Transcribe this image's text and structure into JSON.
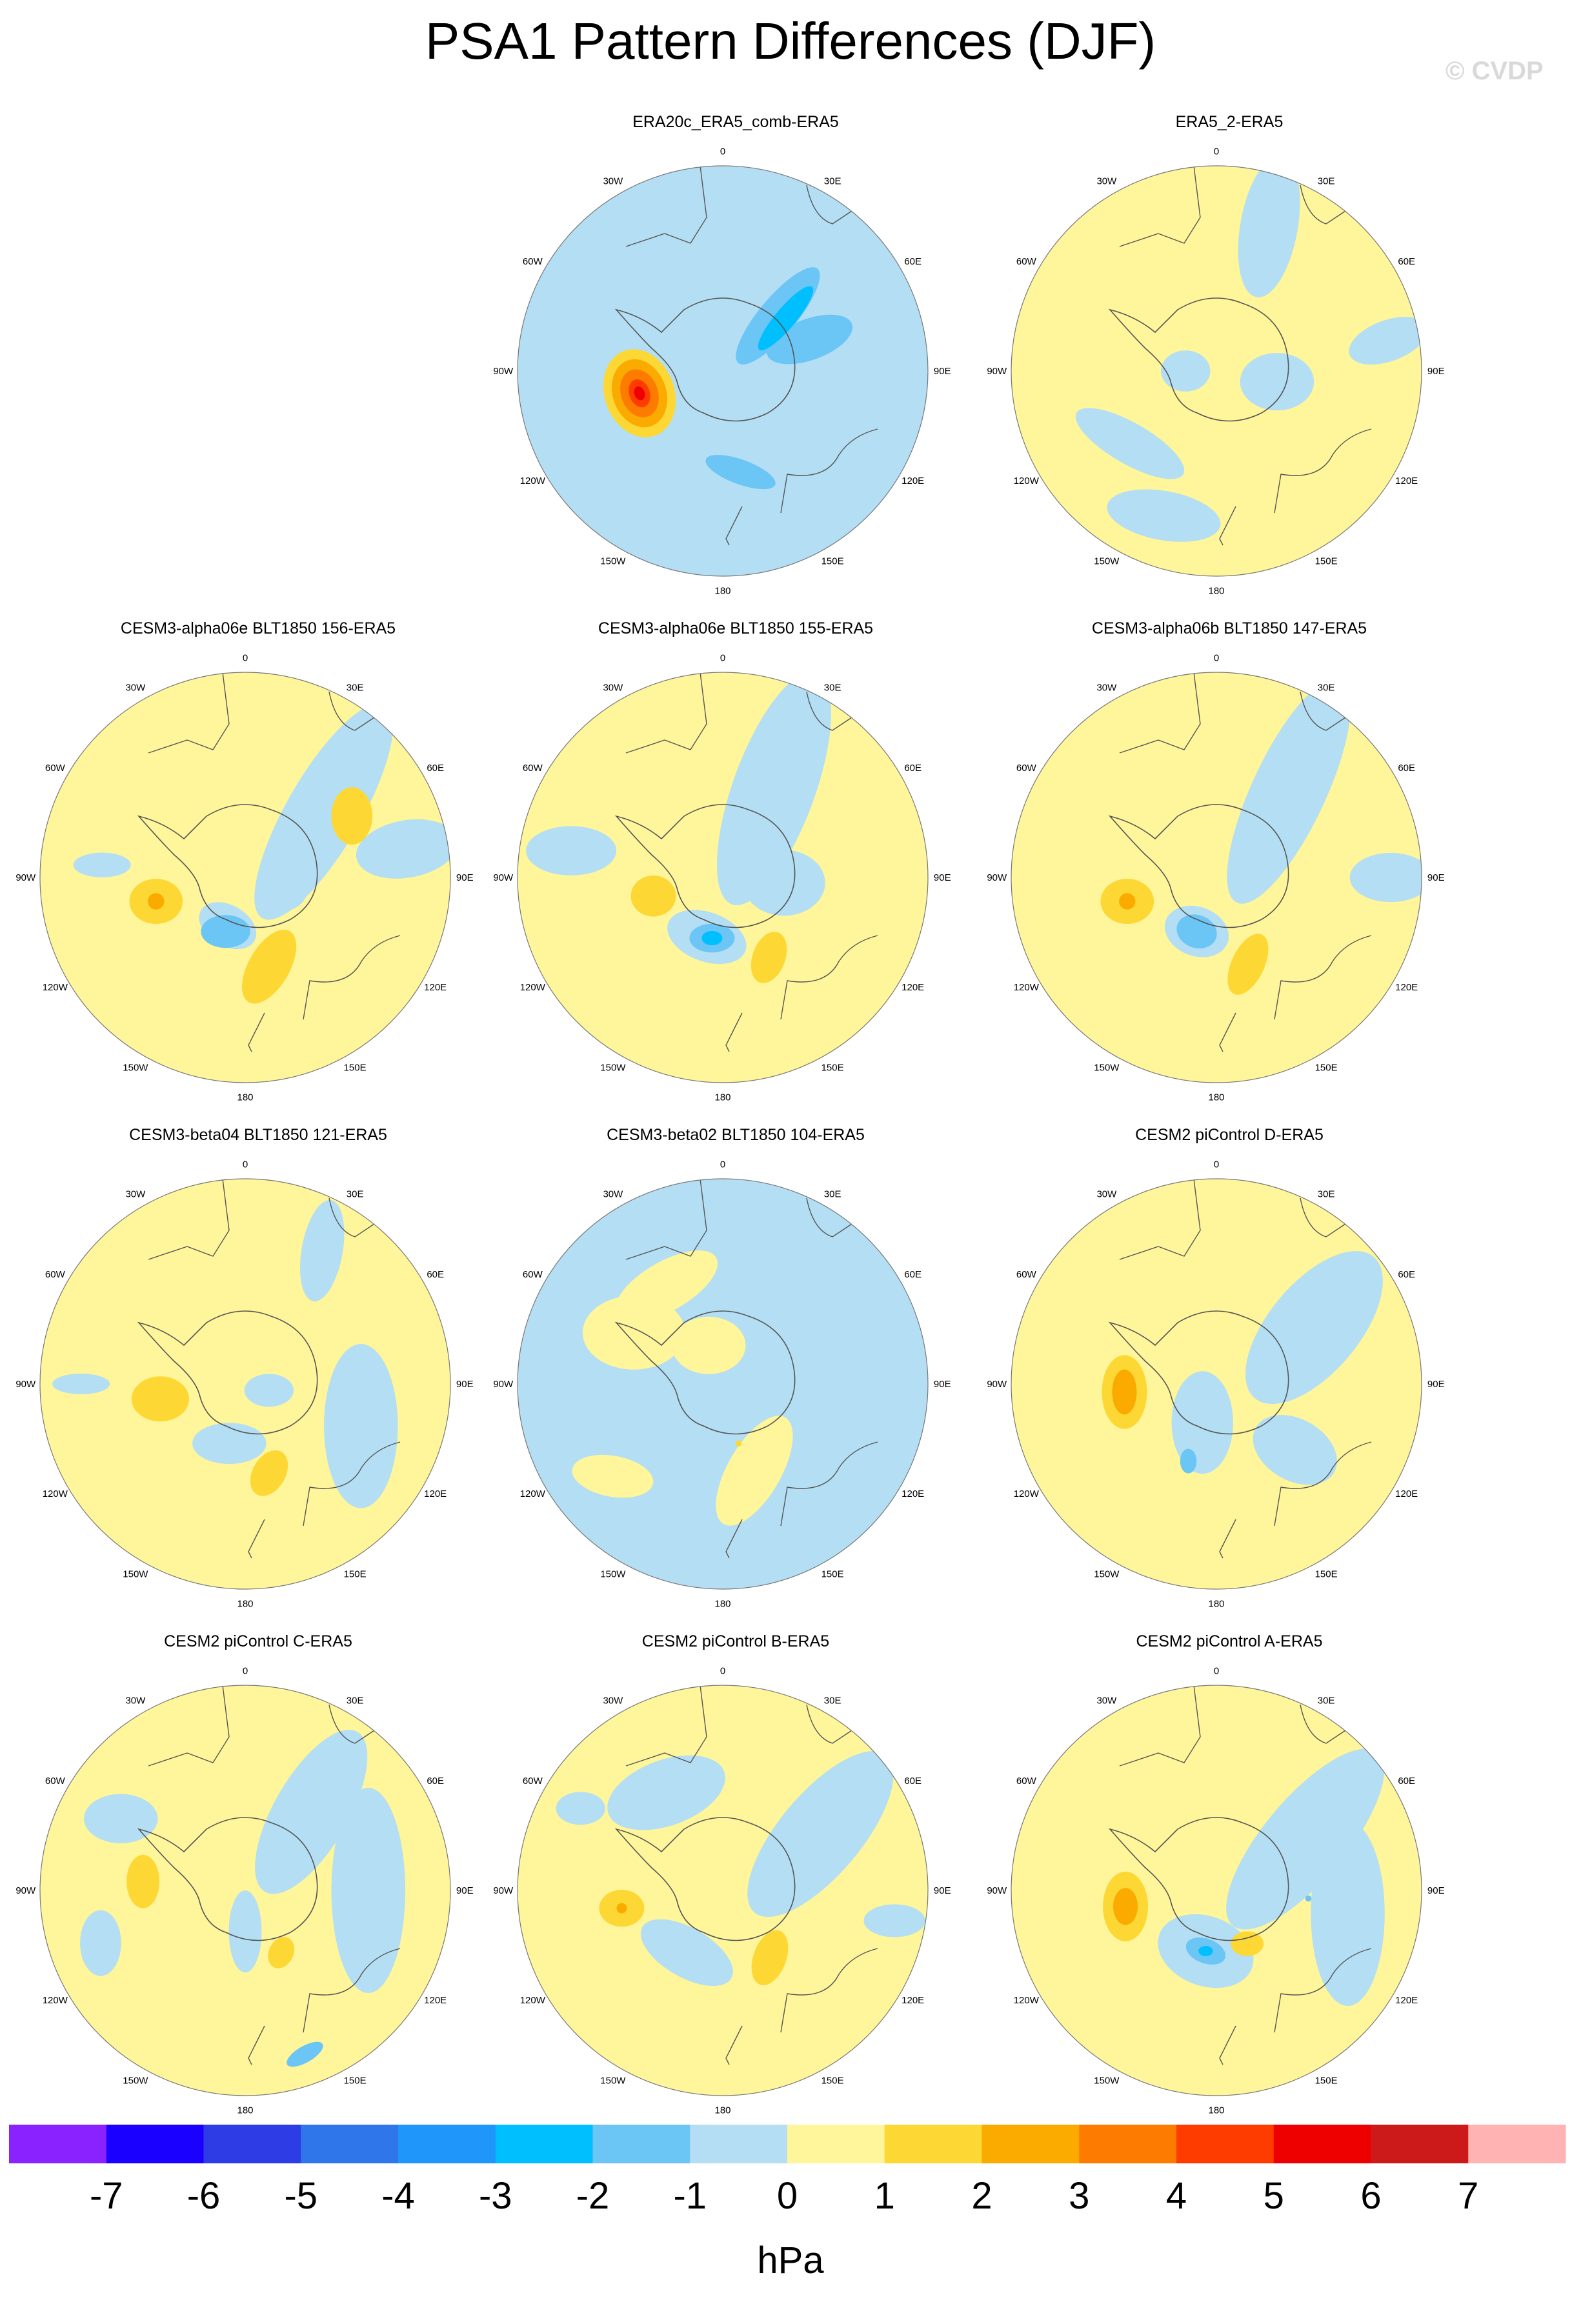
{
  "title": "PSA1 Pattern Differences (DJF)",
  "watermark": "© CVDP",
  "lon_labels": [
    "0",
    "30E",
    "60E",
    "90E",
    "120E",
    "150E",
    "180",
    "150W",
    "120W",
    "90W",
    "60W",
    "30W"
  ],
  "panels": [
    {
      "title": "ERA20c_ERA5_comb-ERA5",
      "bg": 0,
      "blobs": [
        {
          "lon": 290,
          "r": 0.55,
          "rx": 0.12,
          "ry": 0.07,
          "rot": 20,
          "v": -1
        },
        {
          "lon": 90,
          "r": 0.5,
          "rx": 0.55,
          "ry": 0.16,
          "rot": 90,
          "v": -1
        },
        {
          "lon": 40,
          "r": 0.35,
          "rx": 0.4,
          "ry": 0.14,
          "rot": 130,
          "v": -1
        },
        {
          "lon": 130,
          "r": 0.48,
          "rx": 0.35,
          "ry": 0.14,
          "rot": 40,
          "v": -1
        },
        {
          "lon": 45,
          "r": 0.38,
          "rx": 0.3,
          "ry": 0.09,
          "rot": 130,
          "v": -2
        },
        {
          "lon": 70,
          "r": 0.45,
          "rx": 0.22,
          "ry": 0.1,
          "rot": 160,
          "v": -2
        },
        {
          "lon": 170,
          "r": 0.5,
          "rx": 0.18,
          "ry": 0.06,
          "rot": 20,
          "v": -2
        },
        {
          "lon": 50,
          "r": 0.4,
          "rx": 0.2,
          "ry": 0.05,
          "rot": 130,
          "v": -3
        },
        {
          "lon": 255,
          "r": 0.42,
          "rx": 0.22,
          "ry": 0.17,
          "rot": 70,
          "v": 1
        },
        {
          "lon": 255,
          "r": 0.42,
          "rx": 0.17,
          "ry": 0.13,
          "rot": 70,
          "v": 2
        },
        {
          "lon": 255,
          "r": 0.42,
          "rx": 0.12,
          "ry": 0.09,
          "rot": 70,
          "v": 3
        },
        {
          "lon": 255,
          "r": 0.42,
          "rx": 0.07,
          "ry": 0.05,
          "rot": 70,
          "v": 4
        },
        {
          "lon": 255,
          "r": 0.42,
          "rx": 0.035,
          "ry": 0.025,
          "rot": 70,
          "v": 5
        }
      ]
    },
    {
      "title": "ERA5_2-ERA5",
      "bg": 1,
      "blobs": [
        {
          "lon": 20,
          "r": 0.75,
          "rx": 0.35,
          "ry": 0.14,
          "rot": 100,
          "v": -1
        },
        {
          "lon": 80,
          "r": 0.85,
          "rx": 0.2,
          "ry": 0.1,
          "rot": 160,
          "v": -1
        },
        {
          "lon": 230,
          "r": 0.55,
          "rx": 0.3,
          "ry": 0.1,
          "rot": 30,
          "v": -1
        },
        {
          "lon": 200,
          "r": 0.75,
          "rx": 0.28,
          "ry": 0.12,
          "rot": 10,
          "v": -1
        },
        {
          "lon": 100,
          "r": 0.3,
          "rx": 0.18,
          "ry": 0.14,
          "rot": 0,
          "v": -1
        },
        {
          "lon": 270,
          "r": 0.15,
          "rx": 0.12,
          "ry": 0.1,
          "rot": 0,
          "v": -1
        }
      ]
    },
    {
      "title": "CESM3-alpha06e BLT1850 156-ERA5",
      "bg": 1,
      "blobs": [
        {
          "lon": 50,
          "r": 0.5,
          "rx": 0.6,
          "ry": 0.18,
          "rot": 120,
          "v": -1
        },
        {
          "lon": 80,
          "r": 0.8,
          "rx": 0.25,
          "ry": 0.14,
          "rot": 170,
          "v": -1
        },
        {
          "lon": 200,
          "r": 0.25,
          "rx": 0.15,
          "ry": 0.1,
          "rot": 30,
          "v": -1
        },
        {
          "lon": 90,
          "r": 0.2,
          "rx": 0.12,
          "ry": 0.16,
          "rot": 0,
          "v": -1
        },
        {
          "lon": 275,
          "r": 0.7,
          "rx": 0.14,
          "ry": 0.06,
          "rot": 0,
          "v": -1
        },
        {
          "lon": 60,
          "r": 0.6,
          "rx": 0.1,
          "ry": 0.14,
          "rot": 0,
          "v": 1
        },
        {
          "lon": 255,
          "r": 0.45,
          "rx": 0.13,
          "ry": 0.11,
          "rot": 0,
          "v": 1
        },
        {
          "lon": 255,
          "r": 0.45,
          "rx": 0.04,
          "ry": 0.04,
          "rot": 0,
          "v": 2
        },
        {
          "lon": 165,
          "r": 0.45,
          "rx": 0.2,
          "ry": 0.1,
          "rot": 120,
          "v": 1
        },
        {
          "lon": 200,
          "r": 0.28,
          "rx": 0.12,
          "ry": 0.08,
          "rot": 0,
          "v": -2
        }
      ]
    },
    {
      "title": "CESM3-alpha06e BLT1850 155-ERA5",
      "bg": 1,
      "blobs": [
        {
          "lon": 30,
          "r": 0.5,
          "rx": 0.6,
          "ry": 0.2,
          "rot": 110,
          "v": -1
        },
        {
          "lon": 280,
          "r": 0.75,
          "rx": 0.22,
          "ry": 0.12,
          "rot": 0,
          "v": -1
        },
        {
          "lon": 95,
          "r": 0.3,
          "rx": 0.2,
          "ry": 0.16,
          "rot": 0,
          "v": -1
        },
        {
          "lon": 195,
          "r": 0.3,
          "rx": 0.2,
          "ry": 0.12,
          "rot": 20,
          "v": -1
        },
        {
          "lon": 190,
          "r": 0.3,
          "rx": 0.11,
          "ry": 0.07,
          "rot": 0,
          "v": -2
        },
        {
          "lon": 190,
          "r": 0.3,
          "rx": 0.05,
          "ry": 0.035,
          "rot": 0,
          "v": -3
        },
        {
          "lon": 255,
          "r": 0.35,
          "rx": 0.11,
          "ry": 0.1,
          "rot": 0,
          "v": 1
        },
        {
          "lon": 150,
          "r": 0.45,
          "rx": 0.13,
          "ry": 0.08,
          "rot": 110,
          "v": 1
        }
      ]
    },
    {
      "title": "CESM3-alpha06b BLT1850 147-ERA5",
      "bg": 1,
      "blobs": [
        {
          "lon": 40,
          "r": 0.55,
          "rx": 0.6,
          "ry": 0.18,
          "rot": 115,
          "v": -1
        },
        {
          "lon": 90,
          "r": 0.85,
          "rx": 0.2,
          "ry": 0.12,
          "rot": 0,
          "v": -1
        },
        {
          "lon": 200,
          "r": 0.28,
          "rx": 0.16,
          "ry": 0.12,
          "rot": 20,
          "v": -1
        },
        {
          "lon": 200,
          "r": 0.28,
          "rx": 0.1,
          "ry": 0.08,
          "rot": 20,
          "v": -2
        },
        {
          "lon": 255,
          "r": 0.45,
          "rx": 0.13,
          "ry": 0.11,
          "rot": 0,
          "v": 1
        },
        {
          "lon": 255,
          "r": 0.45,
          "rx": 0.04,
          "ry": 0.04,
          "rot": 0,
          "v": 2
        },
        {
          "lon": 160,
          "r": 0.45,
          "rx": 0.16,
          "ry": 0.08,
          "rot": 115,
          "v": 1
        }
      ]
    },
    {
      "title": "CESM3-beta04 BLT1850 121-ERA5",
      "bg": 1,
      "blobs": [
        {
          "lon": 30,
          "r": 0.75,
          "rx": 0.25,
          "ry": 0.1,
          "rot": 100,
          "v": -1
        },
        {
          "lon": 110,
          "r": 0.6,
          "rx": 0.18,
          "ry": 0.4,
          "rot": 0,
          "v": -1
        },
        {
          "lon": 195,
          "r": 0.3,
          "rx": 0.18,
          "ry": 0.1,
          "rot": 0,
          "v": -1
        },
        {
          "lon": 270,
          "r": 0.8,
          "rx": 0.14,
          "ry": 0.05,
          "rot": 0,
          "v": -1
        },
        {
          "lon": 105,
          "r": 0.12,
          "rx": 0.12,
          "ry": 0.08,
          "rot": 0,
          "v": -1
        },
        {
          "lon": 260,
          "r": 0.42,
          "rx": 0.14,
          "ry": 0.11,
          "rot": 0,
          "v": 1
        },
        {
          "lon": 165,
          "r": 0.45,
          "rx": 0.12,
          "ry": 0.08,
          "rot": 120,
          "v": 1
        }
      ]
    },
    {
      "title": "CESM3-beta02 BLT1850 104-ERA5",
      "bg": -1,
      "blobs": [
        {
          "lon": 300,
          "r": 0.5,
          "rx": 0.25,
          "ry": 0.18,
          "rot": 0,
          "v": 0
        },
        {
          "lon": 330,
          "r": 0.55,
          "rx": 0.28,
          "ry": 0.12,
          "rot": 150,
          "v": 0
        },
        {
          "lon": 340,
          "r": 0.2,
          "rx": 0.18,
          "ry": 0.14,
          "rot": 0,
          "v": 0
        },
        {
          "lon": 160,
          "r": 0.45,
          "rx": 0.3,
          "ry": 0.13,
          "rot": 120,
          "v": 0
        },
        {
          "lon": 230,
          "r": 0.7,
          "rx": 0.2,
          "ry": 0.1,
          "rot": 10,
          "v": 0
        },
        {
          "lon": 165,
          "r": 0.3,
          "rx": 0.015,
          "ry": 0.015,
          "rot": 0,
          "v": 1
        }
      ]
    },
    {
      "title": "CESM2 piControl D-ERA5",
      "bg": 1,
      "blobs": [
        {
          "lon": 60,
          "r": 0.55,
          "rx": 0.45,
          "ry": 0.22,
          "rot": 130,
          "v": -1
        },
        {
          "lon": 130,
          "r": 0.5,
          "rx": 0.22,
          "ry": 0.15,
          "rot": 30,
          "v": -1
        },
        {
          "lon": 200,
          "r": 0.2,
          "rx": 0.15,
          "ry": 0.25,
          "rot": 0,
          "v": -1
        },
        {
          "lon": 200,
          "r": 0.4,
          "rx": 0.04,
          "ry": 0.06,
          "rot": 0,
          "v": -2
        },
        {
          "lon": 265,
          "r": 0.45,
          "rx": 0.11,
          "ry": 0.18,
          "rot": 0,
          "v": 1
        },
        {
          "lon": 265,
          "r": 0.45,
          "rx": 0.06,
          "ry": 0.11,
          "rot": 0,
          "v": 2
        }
      ]
    },
    {
      "title": "CESM2 piControl C-ERA5",
      "bg": 1,
      "blobs": [
        {
          "lon": 40,
          "r": 0.5,
          "rx": 0.45,
          "ry": 0.18,
          "rot": 120,
          "v": -1
        },
        {
          "lon": 90,
          "r": 0.6,
          "rx": 0.18,
          "ry": 0.5,
          "rot": 0,
          "v": -1
        },
        {
          "lon": 300,
          "r": 0.7,
          "rx": 0.18,
          "ry": 0.12,
          "rot": 0,
          "v": -1
        },
        {
          "lon": 180,
          "r": 0.2,
          "rx": 0.2,
          "ry": 0.08,
          "rot": 90,
          "v": -1
        },
        {
          "lon": 250,
          "r": 0.75,
          "rx": 0.1,
          "ry": 0.16,
          "rot": 0,
          "v": -1
        },
        {
          "lon": 160,
          "r": 0.85,
          "rx": 0.1,
          "ry": 0.04,
          "rot": 150,
          "v": -2
        },
        {
          "lon": 275,
          "r": 0.5,
          "rx": 0.08,
          "ry": 0.13,
          "rot": 0,
          "v": 1
        },
        {
          "lon": 150,
          "r": 0.35,
          "rx": 0.08,
          "ry": 0.06,
          "rot": 115,
          "v": 1
        }
      ]
    },
    {
      "title": "CESM2 piControl B-ERA5",
      "bg": 1,
      "blobs": [
        {
          "lon": 330,
          "r": 0.55,
          "rx": 0.3,
          "ry": 0.16,
          "rot": 160,
          "v": -1
        },
        {
          "lon": 60,
          "r": 0.55,
          "rx": 0.5,
          "ry": 0.2,
          "rot": 130,
          "v": -1
        },
        {
          "lon": 100,
          "r": 0.85,
          "rx": 0.15,
          "ry": 0.08,
          "rot": 0,
          "v": -1
        },
        {
          "lon": 210,
          "r": 0.35,
          "rx": 0.25,
          "ry": 0.12,
          "rot": 30,
          "v": -1
        },
        {
          "lon": 300,
          "r": 0.8,
          "rx": 0.12,
          "ry": 0.08,
          "rot": 0,
          "v": -1
        },
        {
          "lon": 260,
          "r": 0.5,
          "rx": 0.11,
          "ry": 0.09,
          "rot": 0,
          "v": 1
        },
        {
          "lon": 260,
          "r": 0.5,
          "rx": 0.025,
          "ry": 0.025,
          "rot": 0,
          "v": 2
        },
        {
          "lon": 145,
          "r": 0.4,
          "rx": 0.14,
          "ry": 0.08,
          "rot": 110,
          "v": 1
        }
      ]
    },
    {
      "title": "CESM2 piControl A-ERA5",
      "bg": 1,
      "blobs": [
        {
          "lon": 60,
          "r": 0.5,
          "rx": 0.55,
          "ry": 0.2,
          "rot": 130,
          "v": -1
        },
        {
          "lon": 100,
          "r": 0.65,
          "rx": 0.18,
          "ry": 0.45,
          "rot": 0,
          "v": -1
        },
        {
          "lon": 190,
          "r": 0.3,
          "rx": 0.24,
          "ry": 0.17,
          "rot": 20,
          "v": -1
        },
        {
          "lon": 190,
          "r": 0.3,
          "rx": 0.1,
          "ry": 0.06,
          "rot": 20,
          "v": -2
        },
        {
          "lon": 190,
          "r": 0.3,
          "rx": 0.035,
          "ry": 0.025,
          "rot": 0,
          "v": -3
        },
        {
          "lon": 95,
          "r": 0.45,
          "rx": 0.015,
          "ry": 0.015,
          "rot": 0,
          "v": -2
        },
        {
          "lon": 260,
          "r": 0.45,
          "rx": 0.11,
          "ry": 0.17,
          "rot": 0,
          "v": 1
        },
        {
          "lon": 260,
          "r": 0.45,
          "rx": 0.06,
          "ry": 0.09,
          "rot": 0,
          "v": 2
        },
        {
          "lon": 150,
          "r": 0.3,
          "rx": 0.08,
          "ry": 0.06,
          "rot": 0,
          "v": 1
        }
      ]
    }
  ],
  "colorbar": {
    "units": "hPa",
    "levels": [
      "-7",
      "-6",
      "-5",
      "-4",
      "-3",
      "-2",
      "-1",
      "0",
      "1",
      "2",
      "3",
      "4",
      "5",
      "6",
      "7"
    ],
    "colors": [
      "#8a22ff",
      "#1a00ff",
      "#2e3ce6",
      "#2f76ea",
      "#1e96fa",
      "#00bfff",
      "#6bc5f5",
      "#b3def3",
      "#fff59a",
      "#fdd835",
      "#fbaa00",
      "#fd7c00",
      "#ff3c00",
      "#ee0000",
      "#cc1a1a",
      "#ffb3b3"
    ]
  }
}
